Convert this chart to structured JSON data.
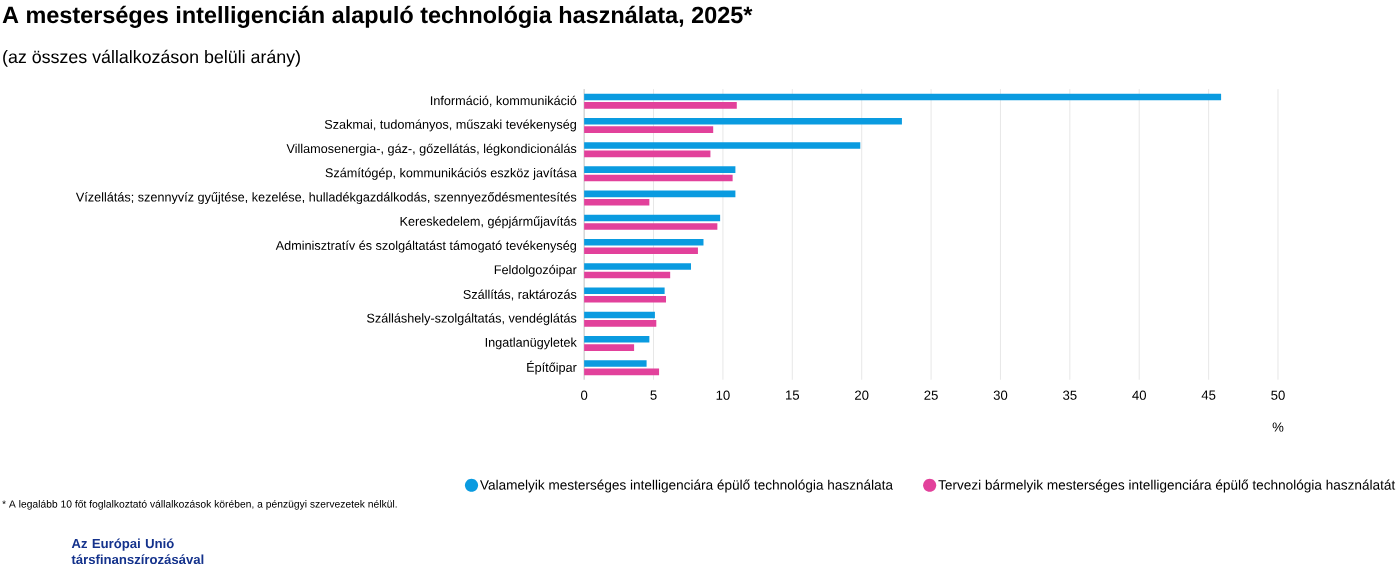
{
  "chart_data": {
    "type": "bar",
    "orientation": "horizontal",
    "title": "A mesterséges intelligencián alapuló technológia használata, 2025*",
    "subtitle": "(az összes vállalkozáson belüli arány)",
    "xlabel": "%",
    "categories": [
      "Információ, kommunikáció",
      "Szakmai, tudományos, műszaki tevékenység",
      "Villamosenergia-, gáz-, gőzellátás, légkondicionálás",
      "Számítógép, kommunikációs eszköz javítása",
      "Vízellátás; szennyvíz gyűjtése, kezelése, hulladékgazdálkodás, szennyeződésmentesítés",
      "Kereskedelem, gépjárműjavítás",
      "Adminisztratív és szolgáltatást támogató tevékenység",
      "Feldolgozóipar",
      "Szállítás, raktározás",
      "Szálláshely-szolgáltatás, vendéglátás",
      "Ingatlanügyletek",
      "Építőipar"
    ],
    "series": [
      {
        "name": "Valamelyik mesterséges intelligenciára épülő technológia használata",
        "color": "#0a9be0",
        "values": [
          45.9,
          22.9,
          19.9,
          10.9,
          10.9,
          9.8,
          8.6,
          7.7,
          5.8,
          5.1,
          4.7,
          4.5
        ]
      },
      {
        "name": "Tervezi bármelyik mesterséges intelligenciára épülő technológia használatát",
        "color": "#e2419b",
        "values": [
          11.0,
          9.3,
          9.1,
          10.7,
          4.7,
          9.6,
          8.2,
          6.2,
          5.9,
          5.2,
          3.6,
          5.4
        ]
      }
    ],
    "xlim": [
      0,
      50
    ],
    "xticks": [
      0,
      5,
      10,
      15,
      20,
      25,
      30,
      35,
      40,
      45,
      50
    ],
    "grid": "x",
    "legend": "bottom",
    "annotations": [
      "* A legalább 10 főt foglalkoztató vállalkozások körében, a pénzügyi szervezetek nélkül.",
      "Az Európai Unió társfinanszírozásával"
    ]
  }
}
